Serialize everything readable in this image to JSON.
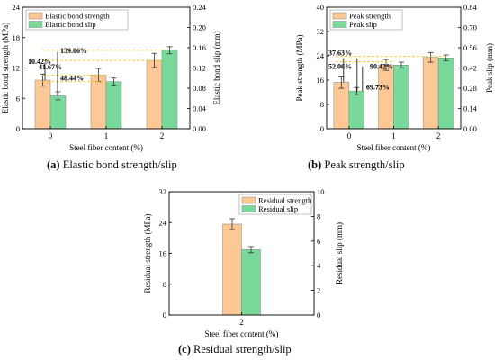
{
  "colors": {
    "strength_bar": "#FBC896",
    "slip_bar": "#79D99B",
    "bar_edge": "#888888",
    "dash_line": "#F5C518",
    "axis": "#000000"
  },
  "captions": {
    "a": {
      "label": "(a)",
      "text": "Elastic bond strength/slip"
    },
    "b": {
      "label": "(b)",
      "text": "Peak strength/slip"
    },
    "c": {
      "label": "(c)",
      "text": "Residual strength/slip"
    }
  },
  "chart_data": [
    {
      "id": "a",
      "type": "bar",
      "xlabel": "Steel fiber content (%)",
      "ylabel_left": "Elastic bond strength (MPa)",
      "ylabel_right": "Elastic bond slip (mm)",
      "categories": [
        "0",
        "1",
        "2"
      ],
      "ylim_left": [
        0,
        24
      ],
      "ylim_right": [
        0,
        0.24
      ],
      "yticks_left": [
        "0",
        "6",
        "12",
        "18",
        "24"
      ],
      "yticks_right": [
        "0.00",
        "0.04",
        "0.08",
        "0.12",
        "0.16",
        "0.20",
        "0.24"
      ],
      "legend_position": "top-left",
      "series": [
        {
          "name": "Elastic bond strength",
          "axis": "left",
          "values": [
            9.6,
            10.6,
            13.5
          ],
          "errors": [
            1.2,
            1.3,
            1.4
          ]
        },
        {
          "name": "Elastic bond slip",
          "axis": "right",
          "values": [
            0.065,
            0.093,
            0.155
          ],
          "errors": [
            0.008,
            0.007,
            0.007
          ]
        }
      ],
      "annotations": [
        "10.42%",
        "41.67%",
        "139.06%",
        "48.44%"
      ]
    },
    {
      "id": "b",
      "type": "bar",
      "xlabel": "Steel fiber content (%)",
      "ylabel_left": "Peak strength (MPa)",
      "ylabel_right": "Peak slip (mm)",
      "categories": [
        "0",
        "1",
        "2"
      ],
      "ylim_left": [
        0,
        40
      ],
      "ylim_right": [
        0,
        0.84
      ],
      "yticks_left": [
        "0",
        "8",
        "16",
        "24",
        "32",
        "40"
      ],
      "yticks_right": [
        "0.00",
        "0.14",
        "0.28",
        "0.42",
        "0.56",
        "0.70",
        "0.84"
      ],
      "legend_position": "top-left",
      "series": [
        {
          "name": "Peak strength",
          "axis": "left",
          "values": [
            15.3,
            21.0,
            23.5
          ],
          "errors": [
            2.0,
            1.8,
            1.6
          ]
        },
        {
          "name": "Peak slip",
          "axis": "right",
          "values": [
            0.26,
            0.44,
            0.49
          ],
          "errors": [
            0.025,
            0.02,
            0.02
          ]
        }
      ],
      "annotations": [
        "37.63%",
        "52.06%",
        "90.42%",
        "69.73%"
      ]
    },
    {
      "id": "c",
      "type": "bar",
      "xlabel": "Steel fiber content (%)",
      "ylabel_left": "Residual strength (MPa)",
      "ylabel_right": "Residual slip (mm)",
      "categories": [
        "2"
      ],
      "ylim_left": [
        0,
        32
      ],
      "ylim_right": [
        0,
        10
      ],
      "yticks_left": [
        "0",
        "8",
        "16",
        "24",
        "32"
      ],
      "yticks_right": [
        "0",
        "2",
        "4",
        "6",
        "8",
        "10"
      ],
      "legend_position": "top-right",
      "series": [
        {
          "name": "Residual strength",
          "axis": "left",
          "values": [
            23.6
          ],
          "errors": [
            1.4
          ]
        },
        {
          "name": "Residual slip",
          "axis": "right",
          "values": [
            5.3
          ],
          "errors": [
            0.25
          ]
        }
      ],
      "annotations": []
    }
  ]
}
